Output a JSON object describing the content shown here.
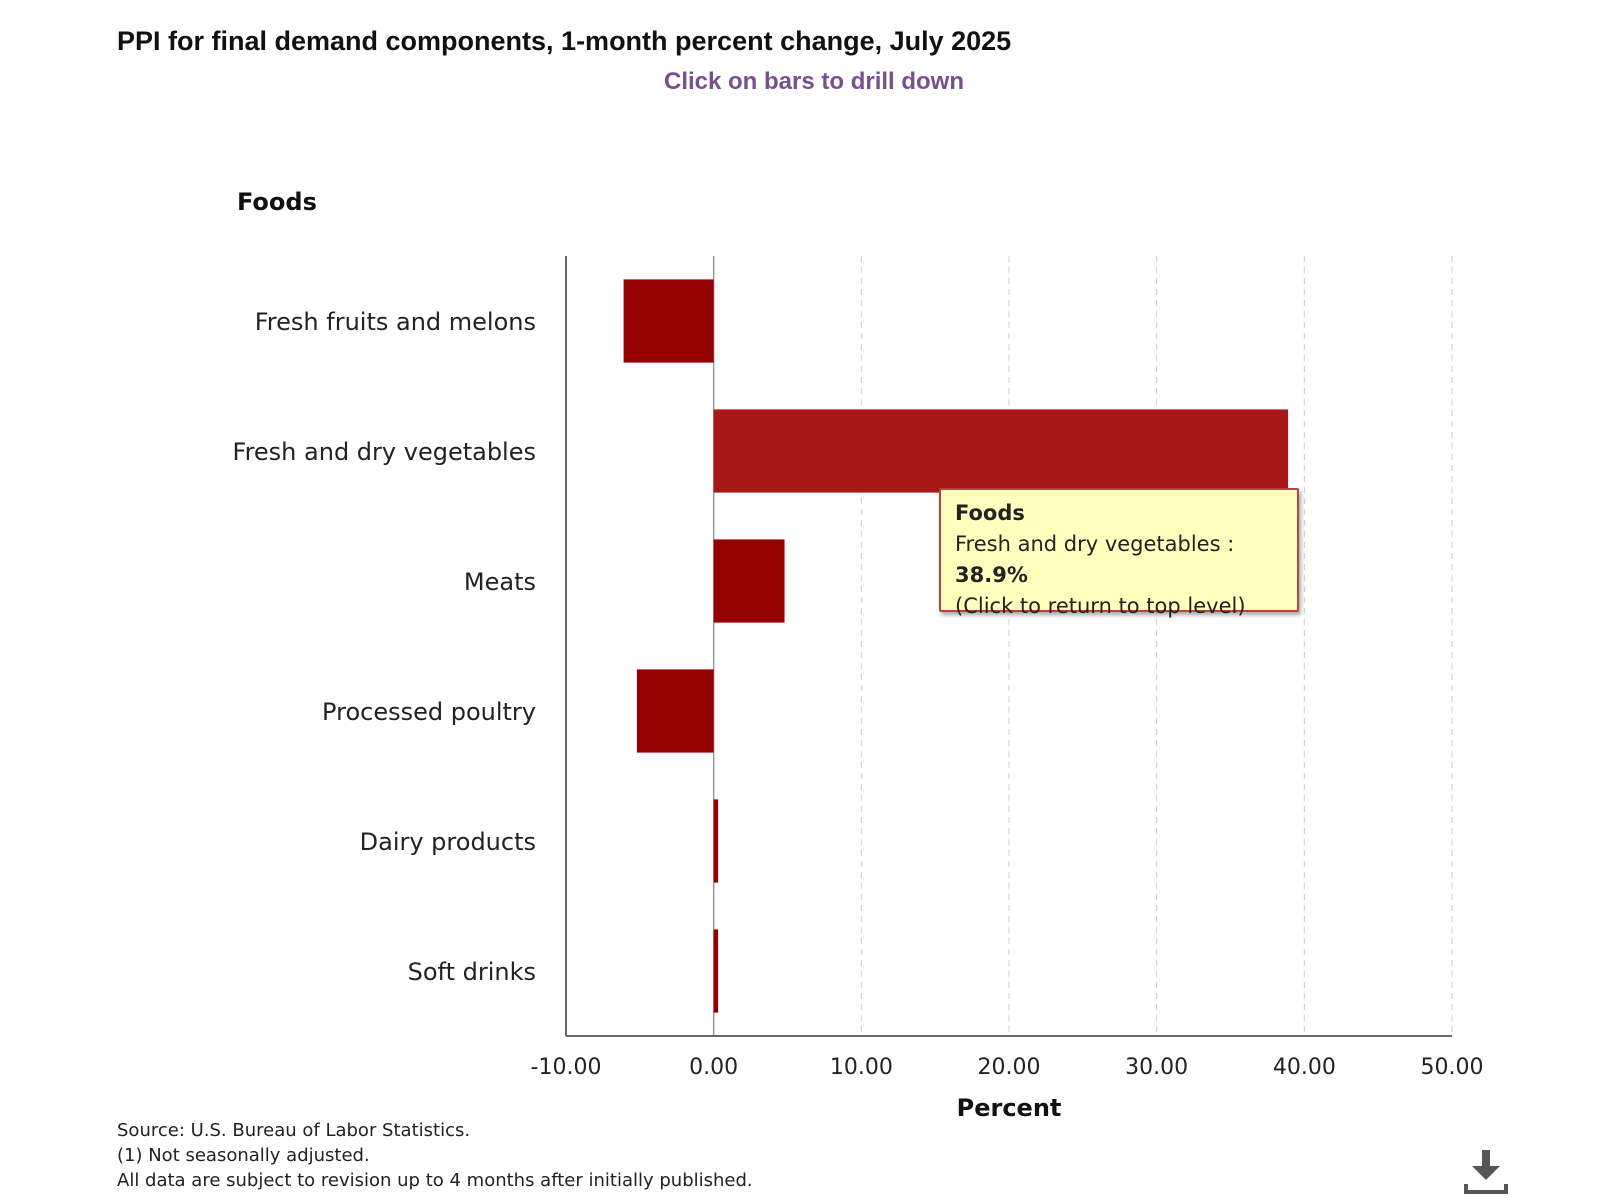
{
  "colors": {
    "bar": "#940000",
    "bar_selected": "#a81818",
    "axis": "#666666",
    "grid": "#cccccc",
    "subtitle": "#7a4f8e",
    "tooltip_bg": "#ffffbe",
    "tooltip_border": "#c04040"
  },
  "chart_data": {
    "type": "bar",
    "orientation": "horizontal",
    "title": "PPI for final demand components, 1-month percent change, July 2025",
    "subtitle": "Click on bars to drill down",
    "level_label": "Foods",
    "categories": [
      "Fresh fruits and melons",
      "Fresh and dry vegetables",
      "Meats",
      "Processed poultry",
      "Dairy products",
      "Soft drinks"
    ],
    "values": [
      -6.1,
      38.9,
      4.8,
      -5.2,
      0.3,
      0.3
    ],
    "xlabel": "Percent",
    "xlim": [
      -10,
      50
    ],
    "ticks": [
      -10,
      0,
      10,
      20,
      30,
      40,
      50
    ],
    "tick_labels": [
      "-10.00",
      "0.00",
      "10.00",
      "20.00",
      "30.00",
      "40.00",
      "50.00"
    ],
    "grid": true,
    "highlighted_category": "Fresh and dry vegetables"
  },
  "tooltip": {
    "heading": "Foods",
    "item_label": "Fresh and dry vegetables : ",
    "item_value": "38.9%",
    "hint": "(Click to return to top level)"
  },
  "footnotes": {
    "source": "Source: U.S. Bureau of Labor Statistics.",
    "note1": "(1) Not seasonally adjusted.",
    "note2": "All data are subject to revision up to 4 months after initially published."
  },
  "icons": {
    "download": "download-icon"
  }
}
